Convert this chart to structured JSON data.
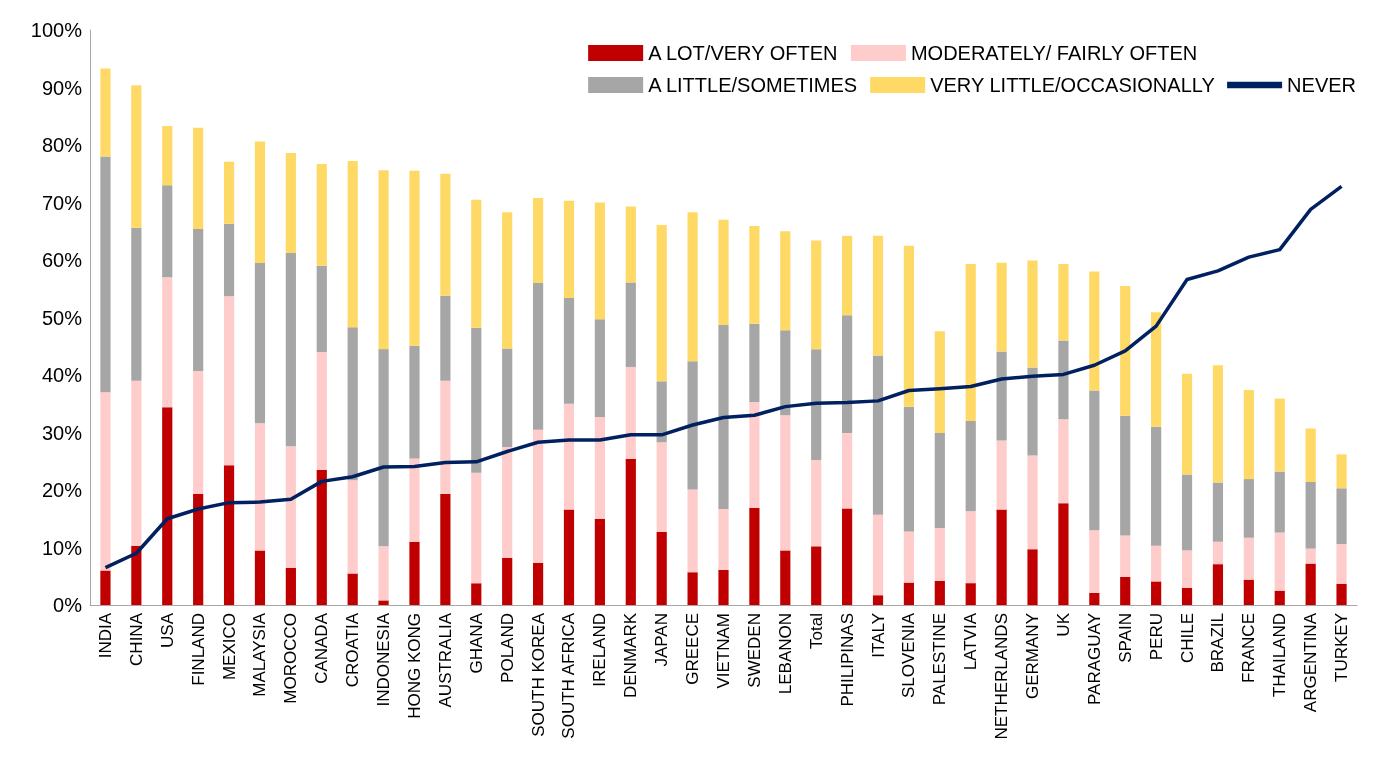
{
  "chart_data": {
    "type": "bar",
    "stacked": true,
    "legend": "top right",
    "grid": false,
    "categories": [
      "INDIA",
      "CHINA",
      "USA",
      "FINLAND",
      "MEXICO",
      "MALAYSIA",
      "MOROCCO",
      "CANADA",
      "CROATIA",
      "INDONESIA",
      "HONG KONG",
      "AUSTRALIA",
      "GHANA",
      "POLAND",
      "SOUTH KOREA",
      "SOUTH AFRICA",
      "IRELAND",
      "DENMARK",
      "JAPAN",
      "GREECE",
      "VIETNAM",
      "SWEDEN",
      "LEBANON",
      "Total",
      "PHILIPINAS",
      "ITALY",
      "SLOVENIA",
      "PALESTINE",
      "LATVIA",
      "NETHERLANDS",
      "GERMANY",
      "UK",
      "PARAGUAY",
      "SPAIN",
      "PERU",
      "CHILE",
      "BRAZIL",
      "FRANCE",
      "THAILAND",
      "ARGENTINA",
      "TURKEY"
    ],
    "ylim": [
      0,
      100
    ],
    "yticks": [
      {
        "value": 0,
        "label": "0%"
      },
      {
        "value": 10,
        "label": "10%"
      },
      {
        "value": 20,
        "label": "20%"
      },
      {
        "value": 30,
        "label": "30%"
      },
      {
        "value": 40,
        "label": "40%"
      },
      {
        "value": 50,
        "label": "50%"
      },
      {
        "value": 60,
        "label": "60%"
      },
      {
        "value": 70,
        "label": "70%"
      },
      {
        "value": 80,
        "label": "80%"
      },
      {
        "value": 90,
        "label": "90%"
      },
      {
        "value": 100,
        "label": "100%"
      }
    ],
    "series": [
      {
        "name": "A LOT/VERY OFTEN",
        "color": "#c00000",
        "values": [
          6,
          10.3,
          34.4,
          19.3,
          24.3,
          9.5,
          6.5,
          23.5,
          5.5,
          0.8,
          11,
          19.3,
          3.8,
          8.2,
          7.3,
          16.6,
          15,
          25.4,
          12.7,
          5.7,
          6.1,
          16.9,
          9.5,
          10.2,
          16.8,
          1.7,
          3.9,
          4.2,
          3.8,
          16.6,
          9.7,
          17.7,
          2.1,
          4.9,
          4.1,
          3,
          7.1,
          4.4,
          2.5,
          7.2,
          3.7
        ]
      },
      {
        "name": "MODERATELY/ FAIRLY OFTEN",
        "color": "#ffcccc",
        "values": [
          31,
          28.7,
          22.6,
          21.4,
          29.4,
          22.1,
          21.1,
          20.5,
          16.2,
          9.4,
          14.5,
          19.7,
          19.2,
          19.3,
          23.2,
          18.4,
          17.7,
          16,
          15.6,
          14.4,
          10.6,
          18.4,
          23.5,
          15,
          13.1,
          14,
          8.9,
          9.2,
          12.5,
          12,
          16.3,
          14.6,
          10.9,
          7.2,
          6.2,
          6.5,
          3.9,
          7.3,
          10.1,
          2.6,
          6.9
        ]
      },
      {
        "name": "A LITTLE/SOMETIMES",
        "color": "#a6a6a6",
        "values": [
          41,
          26.6,
          16,
          24.7,
          12.6,
          27.9,
          33.6,
          15,
          26.6,
          34.3,
          19.6,
          14.8,
          25.2,
          17.1,
          25.5,
          18.4,
          17,
          14.7,
          10.6,
          22.3,
          32,
          13.6,
          14.8,
          19.3,
          20.5,
          27.7,
          21.7,
          16.5,
          15.7,
          15.5,
          15.3,
          13.7,
          24.3,
          20.8,
          20.7,
          13.2,
          10.3,
          10.2,
          10.6,
          11.6,
          9.7
        ]
      },
      {
        "name": "VERY LITTLE/OCCASIONALLY",
        "color": "#ffd966",
        "values": [
          15.3,
          24.8,
          10.3,
          17.6,
          10.8,
          21.1,
          17.4,
          17.7,
          28.9,
          31.1,
          30.4,
          21.2,
          22.3,
          23.7,
          14.8,
          16.9,
          20.3,
          13.2,
          27.2,
          25.9,
          18.3,
          17,
          17.2,
          18.9,
          13.8,
          20.8,
          28,
          17.7,
          27.3,
          15.4,
          18.6,
          13.3,
          20.7,
          22.6,
          19.9,
          17.5,
          20.4,
          15.5,
          12.7,
          9.3,
          5.9
        ]
      },
      {
        "name": "NEVER",
        "type": "line",
        "color": "#002060",
        "values": [
          6.5,
          9,
          15,
          16.7,
          17.8,
          17.9,
          18.4,
          21.5,
          22.3,
          24,
          24.1,
          24.8,
          24.9,
          26.7,
          28.3,
          28.7,
          28.7,
          29.6,
          29.6,
          31.3,
          32.6,
          33,
          34.5,
          35.1,
          35.2,
          35.5,
          37.3,
          37.6,
          38,
          39.3,
          39.8,
          40.1,
          41.7,
          44.2,
          48.5,
          56.6,
          58.1,
          60.5,
          61.8,
          68.8,
          72.8
        ]
      }
    ]
  }
}
